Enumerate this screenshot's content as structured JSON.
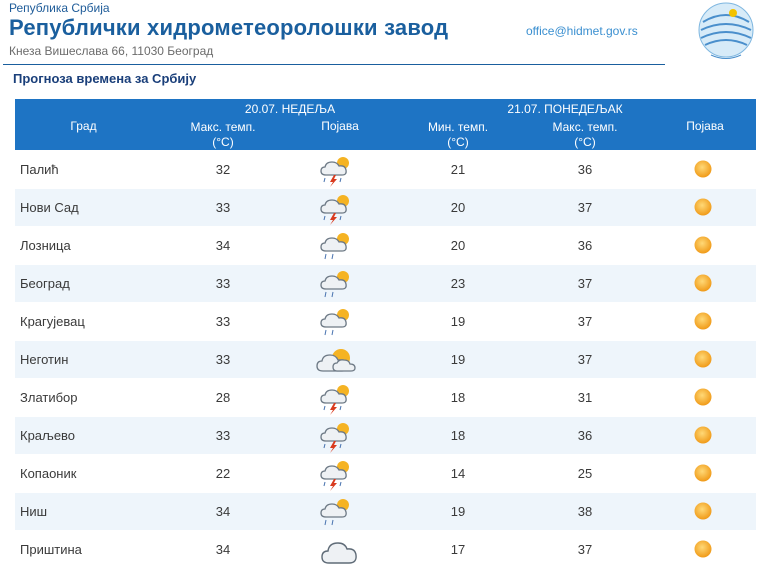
{
  "header": {
    "org_small": "Република Србија",
    "org_title": "Републички хидрометеоролошки завод",
    "address": "Кнеза Вишеслава 66, 11030 Београд",
    "email": "office@hidmet.gov.rs",
    "logo_icon": "rhmz-logo-icon"
  },
  "subtitle": "Прогноза времена за Србију",
  "colors": {
    "header_bg": "#1e74c4",
    "title": "#1a5f9e",
    "row_alt": "#eef5fb"
  },
  "table": {
    "day1": "20.07. НЕДЕЉА",
    "day2": "21.07. ПОНЕДЕЉАК",
    "col_city": "Град",
    "col_max": "Макс. темп.",
    "col_min": "Мин. темп.",
    "unit": "(°C)",
    "col_phen": "Појава",
    "rows": [
      {
        "city": "Палић",
        "max1": "32",
        "icon1": "thunderstorm-partly-sunny-icon",
        "min2": "21",
        "max2": "36",
        "icon2": "sunny-icon"
      },
      {
        "city": "Нови Сад",
        "max1": "33",
        "icon1": "thunderstorm-partly-sunny-icon",
        "min2": "20",
        "max2": "37",
        "icon2": "sunny-icon"
      },
      {
        "city": "Лозница",
        "max1": "34",
        "icon1": "showers-partly-sunny-icon",
        "min2": "20",
        "max2": "36",
        "icon2": "sunny-icon"
      },
      {
        "city": "Београд",
        "max1": "33",
        "icon1": "showers-partly-sunny-icon",
        "min2": "23",
        "max2": "37",
        "icon2": "sunny-icon"
      },
      {
        "city": "Крагујевац",
        "max1": "33",
        "icon1": "showers-partly-sunny-icon",
        "min2": "19",
        "max2": "37",
        "icon2": "sunny-icon"
      },
      {
        "city": "Неготин",
        "max1": "33",
        "icon1": "partly-cloudy-icon",
        "min2": "19",
        "max2": "37",
        "icon2": "sunny-icon"
      },
      {
        "city": "Златибор",
        "max1": "28",
        "icon1": "thunderstorm-partly-sunny-icon",
        "min2": "18",
        "max2": "31",
        "icon2": "sunny-icon"
      },
      {
        "city": "Краљево",
        "max1": "33",
        "icon1": "thunderstorm-partly-sunny-icon",
        "min2": "18",
        "max2": "36",
        "icon2": "sunny-icon"
      },
      {
        "city": "Копаоник",
        "max1": "22",
        "icon1": "thunderstorm-partly-sunny-icon",
        "min2": "14",
        "max2": "25",
        "icon2": "sunny-icon"
      },
      {
        "city": "Ниш",
        "max1": "34",
        "icon1": "showers-partly-sunny-icon",
        "min2": "19",
        "max2": "38",
        "icon2": "sunny-icon"
      },
      {
        "city": "Приштина",
        "max1": "34",
        "icon1": "cloudy-icon",
        "min2": "17",
        "max2": "37",
        "icon2": "sunny-icon"
      }
    ]
  }
}
